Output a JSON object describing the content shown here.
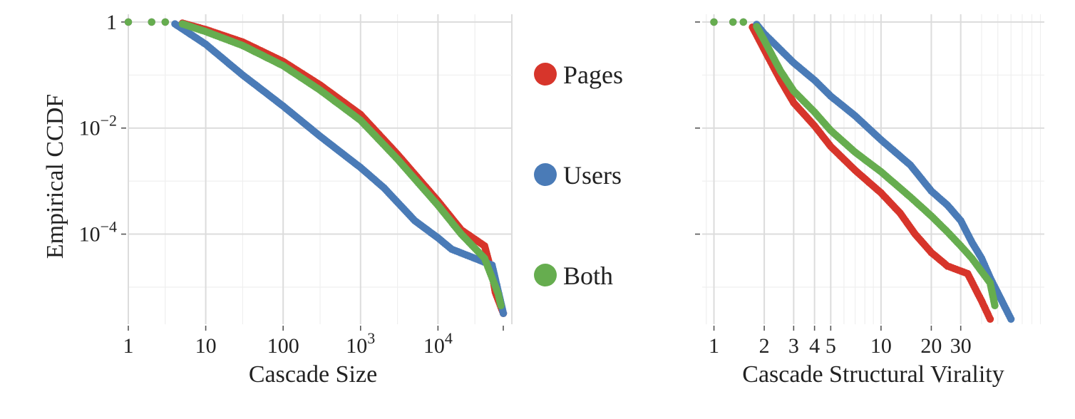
{
  "chart_data": [
    {
      "type": "scatter",
      "xlabel": "Cascade Size",
      "ylabel": "Empirical CCDF",
      "x_scale": "log10",
      "y_scale": "log10",
      "xlim": [
        1,
        90000
      ],
      "ylim": [
        2e-06,
        1.4
      ],
      "x_ticks": [
        {
          "value": 1,
          "label": "1"
        },
        {
          "value": 10,
          "label": "10"
        },
        {
          "value": 100,
          "label": "100"
        },
        {
          "value": 1000,
          "base": "10",
          "exp": "3"
        },
        {
          "value": 10000,
          "base": "10",
          "exp": "4"
        }
      ],
      "y_ticks": [
        {
          "value": 1,
          "label": "1"
        },
        {
          "value": 0.01,
          "base": "10",
          "exp": "−2"
        },
        {
          "value": 0.0001,
          "base": "10",
          "exp": "−4"
        }
      ],
      "grid": true,
      "series": [
        {
          "name": "Pages",
          "color": "#d7352b",
          "points": [
            [
              1,
              1
            ],
            [
              2,
              1
            ],
            [
              3,
              1
            ],
            [
              5,
              0.95
            ],
            [
              10,
              0.72
            ],
            [
              30,
              0.42
            ],
            [
              100,
              0.18
            ],
            [
              300,
              0.065
            ],
            [
              1000,
              0.018
            ],
            [
              3000,
              0.0032
            ],
            [
              10000,
              0.00042
            ],
            [
              20000,
              0.00012
            ],
            [
              40000,
              6e-05
            ],
            [
              50000,
              1.8e-05
            ],
            [
              55000,
              8e-06
            ],
            [
              70000,
              3.2e-06
            ]
          ]
        },
        {
          "name": "Users",
          "color": "#4a7bb7",
          "points": [
            [
              1,
              1
            ],
            [
              2,
              1
            ],
            [
              3,
              1
            ],
            [
              4,
              0.92
            ],
            [
              10,
              0.38
            ],
            [
              30,
              0.1
            ],
            [
              100,
              0.026
            ],
            [
              300,
              0.007
            ],
            [
              1000,
              0.0018
            ],
            [
              2000,
              0.00075
            ],
            [
              5000,
              0.00018
            ],
            [
              10000,
              8.5e-05
            ],
            [
              15000,
              5.2e-05
            ],
            [
              50000,
              2.6e-05
            ],
            [
              70000,
              3.2e-06
            ]
          ]
        },
        {
          "name": "Both",
          "color": "#66ad4f",
          "points": [
            [
              1,
              1
            ],
            [
              2,
              1
            ],
            [
              3,
              1
            ],
            [
              5,
              0.92
            ],
            [
              10,
              0.66
            ],
            [
              30,
              0.36
            ],
            [
              100,
              0.15
            ],
            [
              300,
              0.052
            ],
            [
              1000,
              0.014
            ],
            [
              3000,
              0.0026
            ],
            [
              10000,
              0.00035
            ],
            [
              20000,
              0.0001
            ],
            [
              40000,
              3.5e-05
            ],
            [
              50000,
              1.5e-05
            ],
            [
              60000,
              7.5e-06
            ],
            [
              65000,
              4.5e-06
            ]
          ]
        }
      ]
    },
    {
      "type": "scatter",
      "xlabel": "Cascade Structural Virality",
      "ylabel": "",
      "x_scale": "log10",
      "y_scale": "log10",
      "xlim": [
        0.85,
        95
      ],
      "ylim": [
        2e-06,
        1.4
      ],
      "x_ticks": [
        {
          "value": 1,
          "label": "1"
        },
        {
          "value": 2,
          "label": "2"
        },
        {
          "value": 3,
          "label": "3"
        },
        {
          "value": 4,
          "label": "4"
        },
        {
          "value": 5,
          "label": "5"
        },
        {
          "value": 10,
          "label": "10"
        },
        {
          "value": 20,
          "label": "20"
        },
        {
          "value": 30,
          "label": "30"
        }
      ],
      "y_ticks": [
        {
          "value": 1,
          "label": ""
        },
        {
          "value": 0.01,
          "label": ""
        },
        {
          "value": 0.0001,
          "label": ""
        }
      ],
      "grid": true,
      "series": [
        {
          "name": "Pages",
          "color": "#d7352b",
          "points": [
            [
              1,
              1
            ],
            [
              1.3,
              1
            ],
            [
              1.5,
              1
            ],
            [
              1.7,
              0.8
            ],
            [
              2,
              0.3
            ],
            [
              2.5,
              0.08
            ],
            [
              3,
              0.03
            ],
            [
              4,
              0.011
            ],
            [
              5,
              0.0045
            ],
            [
              7,
              0.0016
            ],
            [
              10,
              0.0006
            ],
            [
              13,
              0.00025
            ],
            [
              16,
              0.0001
            ],
            [
              20,
              4.5e-05
            ],
            [
              25,
              2.5e-05
            ],
            [
              33,
              1.8e-05
            ],
            [
              40,
              5.5e-06
            ],
            [
              45,
              2.5e-06
            ]
          ]
        },
        {
          "name": "Users",
          "color": "#4a7bb7",
          "points": [
            [
              1,
              1
            ],
            [
              1.3,
              1
            ],
            [
              1.5,
              1
            ],
            [
              1.8,
              0.9
            ],
            [
              2,
              0.6
            ],
            [
              2.5,
              0.3
            ],
            [
              3,
              0.17
            ],
            [
              4,
              0.08
            ],
            [
              5,
              0.04
            ],
            [
              7,
              0.017
            ],
            [
              10,
              0.006
            ],
            [
              15,
              0.002
            ],
            [
              20,
              0.00065
            ],
            [
              25,
              0.00035
            ],
            [
              30,
              0.00018
            ],
            [
              35,
              7e-05
            ],
            [
              40,
              3.5e-05
            ],
            [
              45,
              1.5e-05
            ],
            [
              60,
              2.5e-06
            ]
          ]
        },
        {
          "name": "Both",
          "color": "#66ad4f",
          "points": [
            [
              1,
              1
            ],
            [
              1.3,
              1
            ],
            [
              1.5,
              1
            ],
            [
              1.8,
              0.82
            ],
            [
              2,
              0.45
            ],
            [
              2.5,
              0.12
            ],
            [
              3,
              0.05
            ],
            [
              4,
              0.02
            ],
            [
              5,
              0.009
            ],
            [
              7,
              0.0035
            ],
            [
              10,
              0.0015
            ],
            [
              15,
              0.0005
            ],
            [
              20,
              0.00022
            ],
            [
              25,
              0.00011
            ],
            [
              30,
              6e-05
            ],
            [
              35,
              3.5e-05
            ],
            [
              45,
              1.2e-05
            ],
            [
              48,
              4.5e-06
            ]
          ]
        }
      ]
    }
  ],
  "legend": {
    "placement": "between-panels",
    "items": [
      {
        "label": "Pages",
        "color": "#d7352b"
      },
      {
        "label": "Users",
        "color": "#4a7bb7"
      },
      {
        "label": "Both",
        "color": "#66ad4f"
      }
    ]
  }
}
